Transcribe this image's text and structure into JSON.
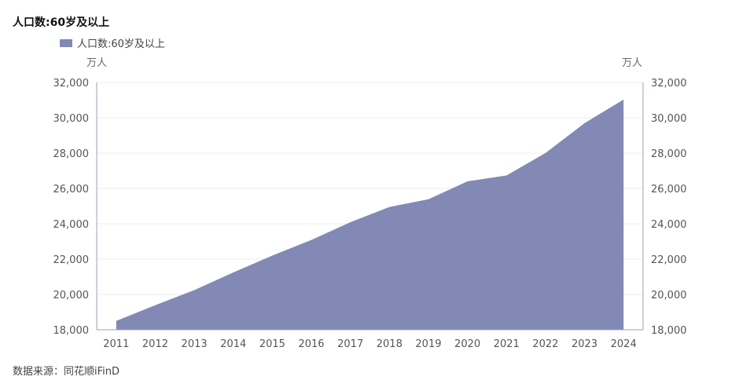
{
  "title": "人口数:60岁及以上",
  "legend_label": "人口数:60岁及以上",
  "source": "数据来源：同花顺iFinD",
  "colors": {
    "area": "#8289b5",
    "grid": "#ececec",
    "axis": "#9aa0b8"
  },
  "chart_data": {
    "type": "area",
    "title": "人口数:60岁及以上",
    "ylabel_left": "万人",
    "ylabel_right": "万人",
    "x": [
      "2011",
      "2012",
      "2013",
      "2014",
      "2015",
      "2016",
      "2017",
      "2018",
      "2019",
      "2020",
      "2021",
      "2022",
      "2023",
      "2024"
    ],
    "series": [
      {
        "name": "人口数:60岁及以上",
        "values": [
          18499,
          19390,
          20243,
          21242,
          22200,
          23086,
          24090,
          24949,
          25388,
          26402,
          26736,
          28004,
          29697,
          31031
        ]
      }
    ],
    "ylim": [
      18000,
      32000
    ],
    "yticks": [
      "18,000",
      "20,000",
      "22,000",
      "24,000",
      "26,000",
      "28,000",
      "30,000",
      "32,000"
    ],
    "ytick_values": [
      18000,
      20000,
      22000,
      24000,
      26000,
      28000,
      30000,
      32000
    ],
    "grid": true,
    "legend_position": "top-left"
  }
}
